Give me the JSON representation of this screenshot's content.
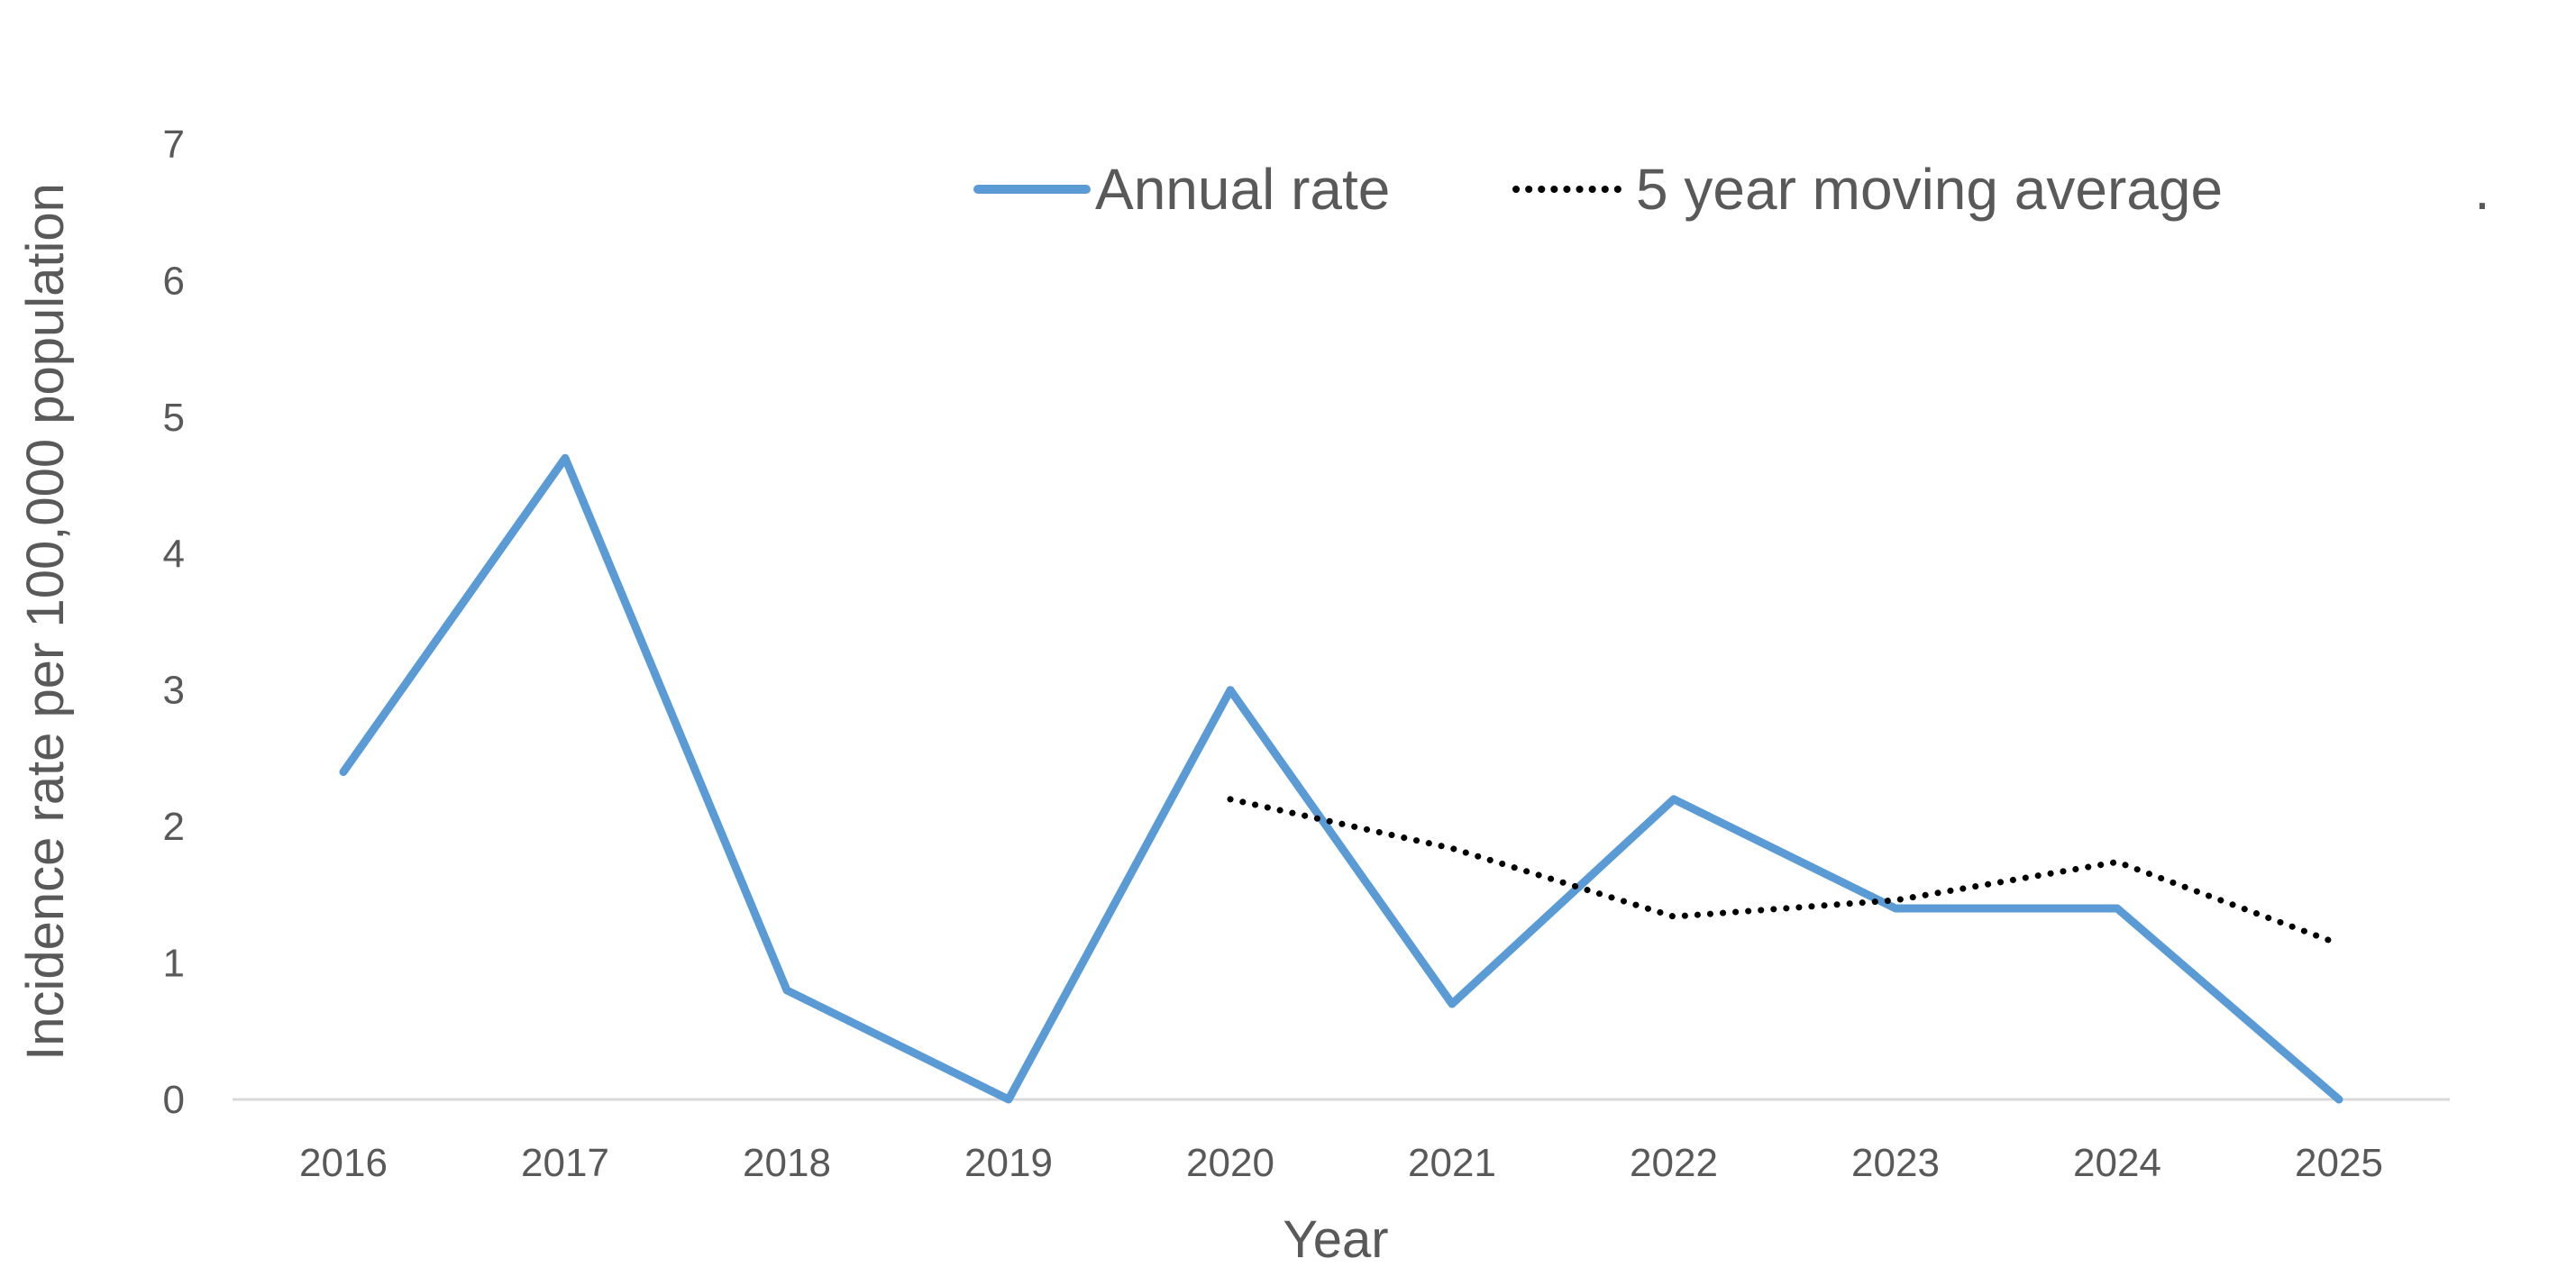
{
  "chart_data": {
    "type": "line",
    "title": "",
    "xlabel": "Year",
    "ylabel": "Incidence rate per 100,000 population",
    "categories": [
      "2016",
      "2017",
      "2018",
      "2019",
      "2020",
      "2021",
      "2022",
      "2023",
      "2024",
      "2025"
    ],
    "y_ticks": [
      "0",
      "1",
      "2",
      "3",
      "4",
      "5",
      "6",
      "7"
    ],
    "ylim": [
      0,
      7
    ],
    "grid": false,
    "legend_position": "top",
    "legend_extra": ".",
    "series": [
      {
        "name": "Annual rate",
        "style": "solid",
        "color": "#5B9BD5",
        "values": [
          2.4,
          4.7,
          0.8,
          0.0,
          3.0,
          0.7,
          2.2,
          1.4,
          1.4,
          0.0
        ]
      },
      {
        "name": "5 year moving average",
        "style": "dotted",
        "color": "#000000",
        "values": [
          null,
          null,
          null,
          null,
          2.2,
          1.84,
          1.34,
          1.46,
          1.74,
          1.14
        ]
      }
    ]
  }
}
